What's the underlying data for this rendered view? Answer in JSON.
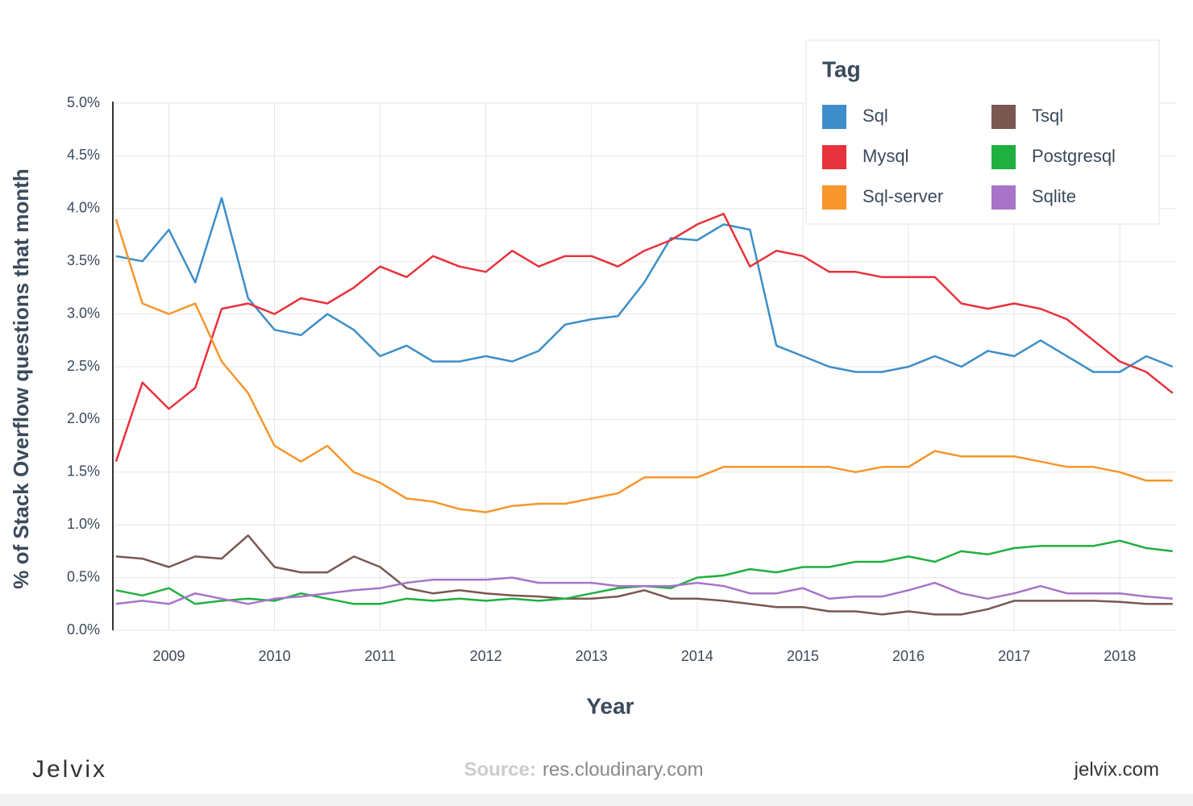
{
  "chart_data": {
    "type": "line",
    "y_label": "% of Stack Overflow questions that month",
    "x_label": "Year",
    "legend_title": "Tag",
    "legend_position": "upper right",
    "grid": true,
    "xlim": [
      2008.47,
      2018.54
    ],
    "xticks": [
      2009,
      2010,
      2011,
      2012,
      2013,
      2014,
      2015,
      2016,
      2017,
      2018
    ],
    "ylim": [
      0,
      5
    ],
    "yticks": [
      {
        "value": 0,
        "label": "0.0%"
      },
      {
        "value": 0.5,
        "label": "0.5%"
      },
      {
        "value": 1,
        "label": "1.0%"
      },
      {
        "value": 1.5,
        "label": "1.5%"
      },
      {
        "value": 2,
        "label": "2.0%"
      },
      {
        "value": 2.5,
        "label": "2.5%"
      },
      {
        "value": 3,
        "label": "3.0%"
      },
      {
        "value": 3.5,
        "label": "3.5%"
      },
      {
        "value": 4,
        "label": "4.0%"
      },
      {
        "value": 4.5,
        "label": "4.5%"
      },
      {
        "value": 5,
        "label": "5.0%"
      }
    ],
    "x": [
      2008.5,
      2008.75,
      2009.0,
      2009.25,
      2009.5,
      2009.75,
      2010.0,
      2010.25,
      2010.5,
      2010.75,
      2011.0,
      2011.25,
      2011.5,
      2011.75,
      2012.0,
      2012.25,
      2012.5,
      2012.75,
      2013.0,
      2013.25,
      2013.5,
      2013.75,
      2014.0,
      2014.25,
      2014.5,
      2014.75,
      2015.0,
      2015.25,
      2015.5,
      2015.75,
      2016.0,
      2016.25,
      2016.5,
      2016.75,
      2017.0,
      2017.25,
      2017.5,
      2017.75,
      2018.0,
      2018.25,
      2018.5
    ],
    "series": [
      {
        "name": "Sql",
        "color": "#3d8ec9",
        "values": [
          3.55,
          3.5,
          3.8,
          3.3,
          4.1,
          3.15,
          2.85,
          2.8,
          3.0,
          2.85,
          2.6,
          2.7,
          2.55,
          2.55,
          2.6,
          2.55,
          2.65,
          2.9,
          2.95,
          2.98,
          3.3,
          3.72,
          3.7,
          3.85,
          3.8,
          2.7,
          2.6,
          2.5,
          2.45,
          2.45,
          2.5,
          2.6,
          2.5,
          2.65,
          2.6,
          2.75,
          2.6,
          2.45,
          2.45,
          2.6,
          2.5
        ]
      },
      {
        "name": "Mysql",
        "color": "#e8323c",
        "values": [
          1.6,
          2.35,
          2.1,
          2.3,
          3.05,
          3.1,
          3.0,
          3.15,
          3.1,
          3.25,
          3.45,
          3.35,
          3.55,
          3.45,
          3.4,
          3.6,
          3.45,
          3.55,
          3.55,
          3.45,
          3.6,
          3.7,
          3.85,
          3.95,
          3.45,
          3.6,
          3.55,
          3.4,
          3.4,
          3.35,
          3.35,
          3.35,
          3.1,
          3.05,
          3.1,
          3.05,
          2.95,
          2.75,
          2.55,
          2.45,
          2.25
        ]
      },
      {
        "name": "Sql-server",
        "color": "#f7962b",
        "values": [
          3.9,
          3.1,
          3.0,
          3.1,
          2.55,
          2.25,
          1.75,
          1.6,
          1.75,
          1.5,
          1.4,
          1.25,
          1.22,
          1.15,
          1.12,
          1.18,
          1.2,
          1.2,
          1.25,
          1.3,
          1.45,
          1.45,
          1.45,
          1.55,
          1.55,
          1.55,
          1.55,
          1.55,
          1.5,
          1.55,
          1.55,
          1.7,
          1.65,
          1.65,
          1.65,
          1.6,
          1.55,
          1.55,
          1.5,
          1.42,
          1.42
        ]
      },
      {
        "name": "Tsql",
        "color": "#7a5750",
        "values": [
          0.7,
          0.68,
          0.6,
          0.7,
          0.68,
          0.9,
          0.6,
          0.55,
          0.55,
          0.7,
          0.6,
          0.4,
          0.35,
          0.38,
          0.35,
          0.33,
          0.32,
          0.3,
          0.3,
          0.32,
          0.38,
          0.3,
          0.3,
          0.28,
          0.25,
          0.22,
          0.22,
          0.18,
          0.18,
          0.15,
          0.18,
          0.15,
          0.15,
          0.2,
          0.28,
          0.28,
          0.28,
          0.28,
          0.27,
          0.25,
          0.25
        ]
      },
      {
        "name": "Postgresql",
        "color": "#1fb03f",
        "values": [
          0.38,
          0.33,
          0.4,
          0.25,
          0.28,
          0.3,
          0.28,
          0.35,
          0.3,
          0.25,
          0.25,
          0.3,
          0.28,
          0.3,
          0.28,
          0.3,
          0.28,
          0.3,
          0.35,
          0.4,
          0.42,
          0.4,
          0.5,
          0.52,
          0.58,
          0.55,
          0.6,
          0.6,
          0.65,
          0.65,
          0.7,
          0.65,
          0.75,
          0.72,
          0.78,
          0.8,
          0.8,
          0.8,
          0.85,
          0.78,
          0.75
        ]
      },
      {
        "name": "Sqlite",
        "color": "#a774c9",
        "values": [
          0.25,
          0.28,
          0.25,
          0.35,
          0.3,
          0.25,
          0.3,
          0.32,
          0.35,
          0.38,
          0.4,
          0.45,
          0.48,
          0.48,
          0.48,
          0.5,
          0.45,
          0.45,
          0.45,
          0.42,
          0.42,
          0.42,
          0.45,
          0.42,
          0.35,
          0.35,
          0.4,
          0.3,
          0.32,
          0.32,
          0.38,
          0.45,
          0.35,
          0.3,
          0.35,
          0.42,
          0.35,
          0.35,
          0.35,
          0.32,
          0.3
        ]
      }
    ]
  },
  "footer": {
    "brand": "Jelvix",
    "source_label": "Source:",
    "source": "res.cloudinary.com",
    "site": "jelvix.com"
  }
}
